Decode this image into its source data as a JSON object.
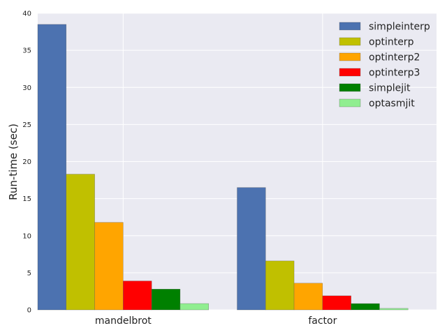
{
  "chart_data": {
    "type": "bar",
    "categories": [
      "mandelbrot",
      "factor"
    ],
    "ylabel": "Run-time (sec)",
    "ylim": [
      0,
      40
    ],
    "yticks": [
      0,
      5,
      10,
      15,
      20,
      25,
      30,
      35,
      40
    ],
    "grid": true,
    "legend": "top-right",
    "series": [
      {
        "name": "simpleinterp",
        "color": "#4c72b0",
        "values": [
          38.5,
          16.5
        ]
      },
      {
        "name": "optinterp",
        "color": "#c0c000",
        "values": [
          18.3,
          6.6
        ]
      },
      {
        "name": "optinterp2",
        "color": "#ffa500",
        "values": [
          11.8,
          3.6
        ]
      },
      {
        "name": "optinterp3",
        "color": "#ff0000",
        "values": [
          3.9,
          1.9
        ]
      },
      {
        "name": "simplejit",
        "color": "#008000",
        "values": [
          2.8,
          0.85
        ]
      },
      {
        "name": "optasmjit",
        "color": "#90ee90",
        "values": [
          0.85,
          0.2
        ]
      }
    ]
  }
}
